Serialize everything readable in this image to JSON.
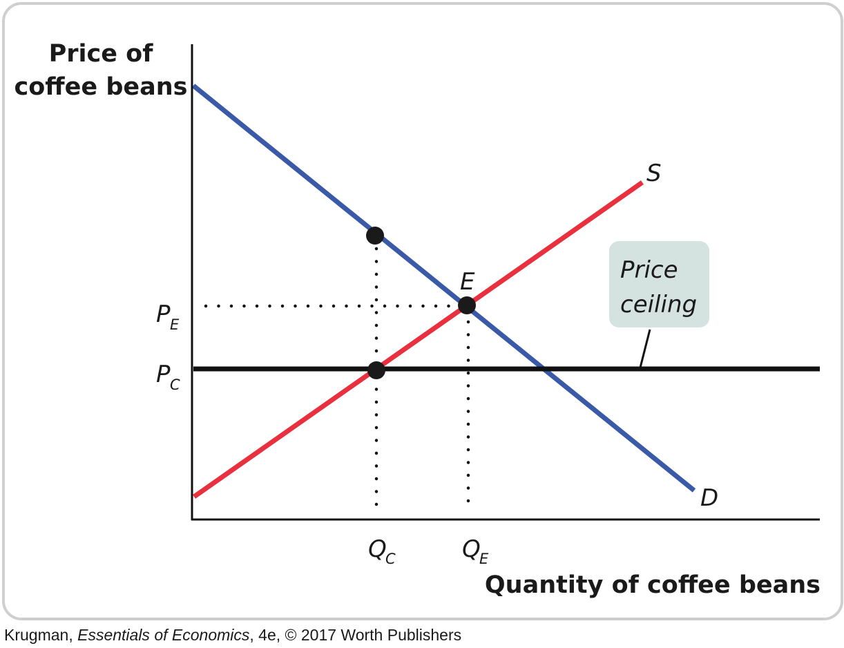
{
  "diagram": {
    "y_axis_label_line1": "Price of",
    "y_axis_label_line2": "coffee beans",
    "x_axis_label": "Quantity of coffee beans",
    "supply_label": "S",
    "demand_label": "D",
    "equilibrium_label": "E",
    "price_eq_main": "P",
    "price_eq_sub": "E",
    "price_ceiling_main": "P",
    "price_ceiling_sub": "C",
    "qty_ceiling_main": "Q",
    "qty_ceiling_sub": "C",
    "qty_eq_main": "Q",
    "qty_eq_sub": "E",
    "callout_line1": "Price",
    "callout_line2": "ceiling",
    "colors": {
      "supply": "#e8303f",
      "demand": "#3a5aa8",
      "ceiling": "#111111",
      "axis": "#111111",
      "callout_bg": "#d4e3df",
      "frame": "#cfcfcf"
    }
  },
  "caption": {
    "author": "Krugman, ",
    "title": "Essentials of Economics",
    "rest": ", 4e, © 2017 Worth Publishers"
  }
}
